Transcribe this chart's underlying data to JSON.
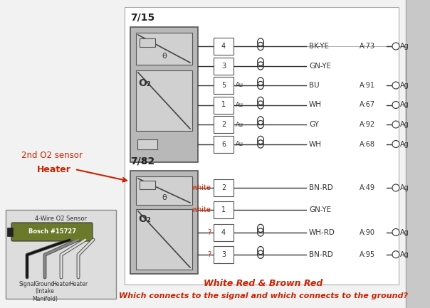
{
  "bg_color": "#f2f2f2",
  "right_panel_color": "#c8c8c8",
  "main_border_color": "#888888",
  "connector_color": "#b0b0b0",
  "inner_box_color": "#cccccc",
  "text_black": "#222222",
  "text_red": "#cc2200",
  "connector_715": {
    "label": "7/15",
    "rows": [
      {
        "pin": "4",
        "label": "BK-YE",
        "code": "A:73",
        "au": false,
        "cross": true,
        "wire_color": "white",
        "ag": true
      },
      {
        "pin": "3",
        "label": "GN-YE",
        "code": "",
        "au": false,
        "cross": true,
        "wire_color": "white",
        "ag": false
      },
      {
        "pin": "5",
        "label": "BU",
        "code": "A:91",
        "au": true,
        "cross": true,
        "wire_color": "white",
        "ag": true
      },
      {
        "pin": "1",
        "label": "WH",
        "code": "A:67",
        "au": true,
        "cross": true,
        "wire_color": "white",
        "ag": true
      },
      {
        "pin": "2",
        "label": "GY",
        "code": "A:92",
        "au": true,
        "cross": true,
        "wire_color": "white",
        "ag": true
      },
      {
        "pin": "6",
        "label": "WH",
        "code": "A:68",
        "au": true,
        "cross": true,
        "wire_color": "white",
        "ag": true
      }
    ]
  },
  "connector_782": {
    "label": "7/82",
    "rows": [
      {
        "pin": "2",
        "label": "BN-RD",
        "code": "A:49",
        "tag": "white",
        "cross": false,
        "ag": true
      },
      {
        "pin": "1",
        "label": "GN-YE",
        "code": "",
        "tag": "white",
        "cross": false,
        "ag": false
      },
      {
        "pin": "4",
        "label": "WH-RD",
        "code": "A:90",
        "tag": "?",
        "cross": true,
        "ag": true
      },
      {
        "pin": "3",
        "label": "BN-RD",
        "code": "A:95",
        "tag": "?",
        "cross": true,
        "ag": true
      }
    ]
  },
  "label_2nd": "2nd O2 sensor",
  "label_heater": "Heater",
  "sensor_label": "4-Wire O2 Sensor",
  "sensor_brand": "Bosch #15727",
  "sensor_color": "#6b7a2a",
  "wire_labels": [
    "Signal",
    "Ground\n(Intake\nManifold)",
    "Heater",
    "Heater"
  ],
  "bottom_line1": "White Red & Brown Red",
  "bottom_line2": "Which connects to the signal and which connects to the ground?"
}
